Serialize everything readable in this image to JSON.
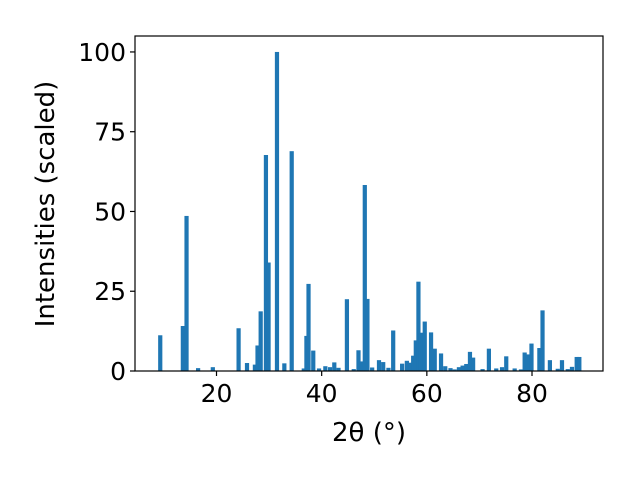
{
  "chart_data": {
    "type": "bar",
    "title": "",
    "xlabel": "2θ (°)",
    "ylabel": "Intensities (scaled)",
    "xlim": [
      4.5,
      93.5
    ],
    "ylim": [
      0,
      105
    ],
    "xticks": [
      20,
      40,
      60,
      80
    ],
    "yticks": [
      0,
      25,
      50,
      75,
      100
    ],
    "grid": false,
    "legend": "none",
    "bar_width": 0.8,
    "color": "#1f77b4",
    "x": [
      9.3,
      13.6,
      14.3,
      16.5,
      19.3,
      24.2,
      25.8,
      27.3,
      27.8,
      28.4,
      29.4,
      29.9,
      31.5,
      32.9,
      34.3,
      36.6,
      37.1,
      37.5,
      38.4,
      39.5,
      40.7,
      41.6,
      42.4,
      43.2,
      44.8,
      46.1,
      47.0,
      47.6,
      48.2,
      48.7,
      49.6,
      50.9,
      51.7,
      52.7,
      53.6,
      55.3,
      56.2,
      56.9,
      57.4,
      57.9,
      58.4,
      58.9,
      59.6,
      60.8,
      61.5,
      62.7,
      63.5,
      64.5,
      65.3,
      66.1,
      66.8,
      67.5,
      68.2,
      68.8,
      70.6,
      71.8,
      73.2,
      74.3,
      75.1,
      76.7,
      77.9,
      78.6,
      79.2,
      79.9,
      81.4,
      82.0,
      83.4,
      84.9,
      85.7,
      86.8,
      87.6,
      88.5,
      89.0
    ],
    "values": [
      11.2,
      14.1,
      48.6,
      0.9,
      1.2,
      13.4,
      2.5,
      2.0,
      8.0,
      18.7,
      67.7,
      34.0,
      100,
      2.4,
      68.9,
      0.8,
      11.0,
      27.3,
      6.4,
      0.8,
      1.5,
      1.2,
      2.7,
      1.0,
      22.5,
      0.6,
      6.5,
      3.0,
      58.3,
      22.6,
      1.1,
      3.4,
      2.8,
      1.0,
      12.7,
      2.3,
      3.2,
      2.6,
      4.8,
      9.6,
      28.0,
      12.0,
      15.5,
      12.1,
      7.0,
      5.5,
      1.5,
      0.9,
      0.5,
      1.2,
      1.7,
      2.2,
      6.0,
      4.2,
      0.6,
      7.0,
      0.8,
      1.2,
      4.6,
      0.8,
      0.5,
      5.8,
      5.2,
      8.6,
      7.2,
      19.0,
      3.4,
      0.7,
      3.4,
      0.6,
      1.3,
      4.4,
      4.4
    ]
  }
}
